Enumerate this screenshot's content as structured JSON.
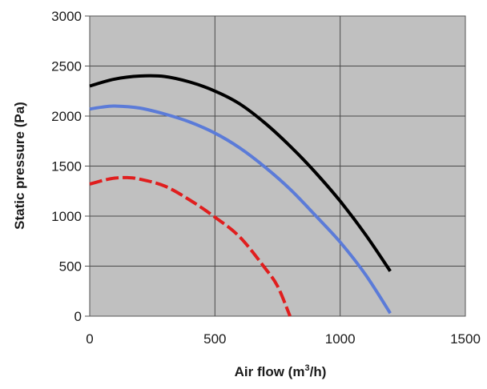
{
  "chart_data": {
    "type": "line",
    "title": "",
    "xlabel": "Air flow (m",
    "xlabel_sup": "3",
    "xlabel_suffix": "/h)",
    "ylabel": "Static pressure (Pa)",
    "xlim": [
      0,
      1500
    ],
    "ylim": [
      0,
      3000
    ],
    "x_ticks": [
      0,
      500,
      1000,
      1500
    ],
    "y_ticks": [
      0,
      500,
      1000,
      1500,
      2000,
      2500,
      3000
    ],
    "x_tick_labels": [
      "0",
      "500",
      "1000",
      "1500"
    ],
    "y_tick_labels": [
      "0",
      "500",
      "1000",
      "1500",
      "2000",
      "2500",
      "3000"
    ],
    "grid": true,
    "plot_background": "#c0c0c0",
    "series": [
      {
        "color": "#000000",
        "style": "solid",
        "points": [
          [
            0,
            2300
          ],
          [
            100,
            2370
          ],
          [
            200,
            2400
          ],
          [
            300,
            2395
          ],
          [
            400,
            2340
          ],
          [
            500,
            2250
          ],
          [
            600,
            2120
          ],
          [
            700,
            1930
          ],
          [
            800,
            1700
          ],
          [
            900,
            1440
          ],
          [
            1000,
            1150
          ],
          [
            1100,
            820
          ],
          [
            1200,
            450
          ]
        ]
      },
      {
        "color": "#5b7bd8",
        "style": "solid",
        "points": [
          [
            0,
            2070
          ],
          [
            50,
            2090
          ],
          [
            100,
            2100
          ],
          [
            200,
            2080
          ],
          [
            300,
            2020
          ],
          [
            400,
            1940
          ],
          [
            500,
            1830
          ],
          [
            600,
            1680
          ],
          [
            700,
            1490
          ],
          [
            800,
            1270
          ],
          [
            900,
            1010
          ],
          [
            1000,
            740
          ],
          [
            1100,
            420
          ],
          [
            1200,
            30
          ]
        ]
      },
      {
        "color": "#e01e1e",
        "style": "dashed",
        "points": [
          [
            0,
            1320
          ],
          [
            50,
            1355
          ],
          [
            100,
            1380
          ],
          [
            150,
            1385
          ],
          [
            200,
            1370
          ],
          [
            300,
            1300
          ],
          [
            400,
            1160
          ],
          [
            500,
            990
          ],
          [
            600,
            790
          ],
          [
            700,
            480
          ],
          [
            750,
            300
          ],
          [
            800,
            0
          ]
        ]
      }
    ]
  }
}
